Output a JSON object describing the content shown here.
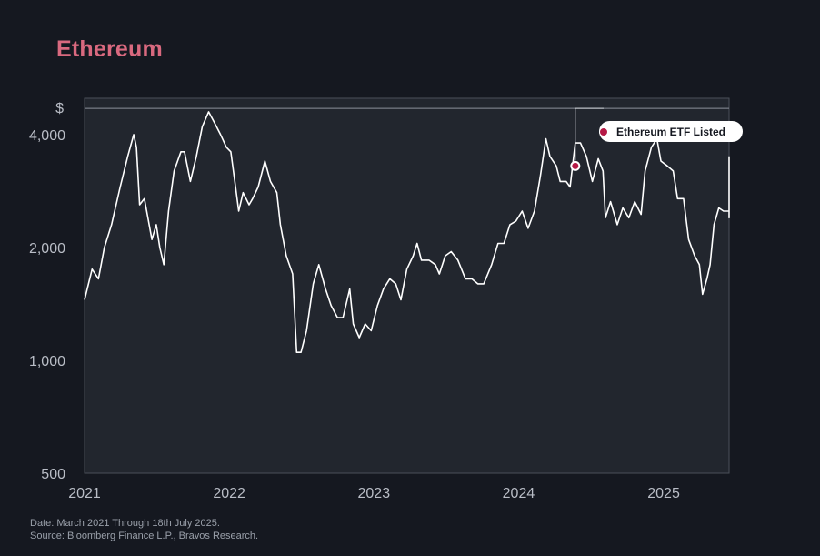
{
  "colors": {
    "accent": "#d9697f",
    "background": "#151820",
    "plot_background": "#22262e",
    "line": "#ffffff",
    "marker": "#b51a46"
  },
  "footer": {
    "date": "Date: March 2021 Through 18th July 2025.",
    "source": "Source: Bloomberg Finance L.P., Bravos Research."
  },
  "chart_data": {
    "type": "line",
    "title": "Ethereum",
    "ylabel": "$",
    "yscale": "log",
    "ylim": [
      500,
      5000
    ],
    "xlim": [
      "2021-01-01",
      "2025-06-15"
    ],
    "yticks": [
      {
        "value": 500,
        "label": "500"
      },
      {
        "value": 1000,
        "label": "1,000"
      },
      {
        "value": 2000,
        "label": "2,000"
      },
      {
        "value": 4000,
        "label": "4,000"
      }
    ],
    "xticks": [
      {
        "value": "2021-01-01",
        "label": "2021"
      },
      {
        "value": "2022-01-01",
        "label": "2022"
      },
      {
        "value": "2023-01-01",
        "label": "2023"
      },
      {
        "value": "2024-01-01",
        "label": "2024"
      },
      {
        "value": "2025-01-01",
        "label": "2025"
      }
    ],
    "grid": false,
    "reference_line": {
      "value": 4700
    },
    "annotations": [
      {
        "text": "Ethereum ETF Listed",
        "x": "2024-05-23",
        "y": 3300
      }
    ],
    "series": [
      {
        "points": [
          [
            "2021-01-01",
            1450
          ],
          [
            "2021-01-20",
            1750
          ],
          [
            "2021-02-05",
            1650
          ],
          [
            "2021-02-20",
            2000
          ],
          [
            "2021-03-10",
            2300
          ],
          [
            "2021-04-01",
            2900
          ],
          [
            "2021-04-20",
            3500
          ],
          [
            "2021-05-05",
            4000
          ],
          [
            "2021-05-12",
            3700
          ],
          [
            "2021-05-20",
            2600
          ],
          [
            "2021-06-01",
            2700
          ],
          [
            "2021-06-20",
            2100
          ],
          [
            "2021-07-01",
            2300
          ],
          [
            "2021-07-10",
            2000
          ],
          [
            "2021-07-20",
            1800
          ],
          [
            "2021-08-01",
            2500
          ],
          [
            "2021-08-15",
            3200
          ],
          [
            "2021-09-01",
            3600
          ],
          [
            "2021-09-10",
            3600
          ],
          [
            "2021-09-25",
            3000
          ],
          [
            "2021-10-10",
            3500
          ],
          [
            "2021-10-25",
            4200
          ],
          [
            "2021-11-10",
            4600
          ],
          [
            "2021-11-25",
            4300
          ],
          [
            "2021-12-10",
            4000
          ],
          [
            "2021-12-25",
            3700
          ],
          [
            "2022-01-05",
            3600
          ],
          [
            "2022-01-15",
            3000
          ],
          [
            "2022-01-25",
            2500
          ],
          [
            "2022-02-05",
            2800
          ],
          [
            "2022-02-20",
            2600
          ],
          [
            "2022-03-01",
            2700
          ],
          [
            "2022-03-15",
            2900
          ],
          [
            "2022-04-01",
            3400
          ],
          [
            "2022-04-15",
            3000
          ],
          [
            "2022-05-01",
            2800
          ],
          [
            "2022-05-10",
            2300
          ],
          [
            "2022-05-25",
            1900
          ],
          [
            "2022-06-10",
            1700
          ],
          [
            "2022-06-20",
            1050
          ],
          [
            "2022-07-01",
            1050
          ],
          [
            "2022-07-15",
            1200
          ],
          [
            "2022-08-01",
            1600
          ],
          [
            "2022-08-15",
            1800
          ],
          [
            "2022-09-01",
            1550
          ],
          [
            "2022-09-15",
            1400
          ],
          [
            "2022-10-01",
            1300
          ],
          [
            "2022-10-15",
            1300
          ],
          [
            "2022-11-01",
            1550
          ],
          [
            "2022-11-10",
            1250
          ],
          [
            "2022-11-25",
            1150
          ],
          [
            "2022-12-10",
            1250
          ],
          [
            "2022-12-25",
            1200
          ],
          [
            "2023-01-10",
            1400
          ],
          [
            "2023-01-25",
            1550
          ],
          [
            "2023-02-10",
            1650
          ],
          [
            "2023-02-25",
            1600
          ],
          [
            "2023-03-10",
            1450
          ],
          [
            "2023-03-25",
            1750
          ],
          [
            "2023-04-10",
            1900
          ],
          [
            "2023-04-20",
            2050
          ],
          [
            "2023-05-01",
            1850
          ],
          [
            "2023-05-20",
            1850
          ],
          [
            "2023-06-05",
            1800
          ],
          [
            "2023-06-15",
            1700
          ],
          [
            "2023-06-30",
            1900
          ],
          [
            "2023-07-15",
            1950
          ],
          [
            "2023-08-01",
            1850
          ],
          [
            "2023-08-20",
            1650
          ],
          [
            "2023-09-05",
            1650
          ],
          [
            "2023-09-20",
            1600
          ],
          [
            "2023-10-05",
            1600
          ],
          [
            "2023-10-25",
            1800
          ],
          [
            "2023-11-10",
            2050
          ],
          [
            "2023-11-25",
            2050
          ],
          [
            "2023-12-10",
            2300
          ],
          [
            "2023-12-25",
            2350
          ],
          [
            "2024-01-10",
            2500
          ],
          [
            "2024-01-25",
            2250
          ],
          [
            "2024-02-10",
            2500
          ],
          [
            "2024-02-25",
            3100
          ],
          [
            "2024-03-10",
            3900
          ],
          [
            "2024-03-20",
            3500
          ],
          [
            "2024-04-05",
            3300
          ],
          [
            "2024-04-15",
            3000
          ],
          [
            "2024-04-30",
            3000
          ],
          [
            "2024-05-10",
            2900
          ],
          [
            "2024-05-23",
            3800
          ],
          [
            "2024-06-05",
            3800
          ],
          [
            "2024-06-20",
            3500
          ],
          [
            "2024-07-05",
            3000
          ],
          [
            "2024-07-20",
            3450
          ],
          [
            "2024-08-01",
            3200
          ],
          [
            "2024-08-07",
            2400
          ],
          [
            "2024-08-20",
            2650
          ],
          [
            "2024-09-06",
            2300
          ],
          [
            "2024-09-20",
            2550
          ],
          [
            "2024-10-05",
            2400
          ],
          [
            "2024-10-20",
            2650
          ],
          [
            "2024-11-05",
            2450
          ],
          [
            "2024-11-15",
            3200
          ],
          [
            "2024-12-01",
            3700
          ],
          [
            "2024-12-15",
            3900
          ],
          [
            "2024-12-25",
            3400
          ],
          [
            "2025-01-10",
            3300
          ],
          [
            "2025-01-25",
            3200
          ],
          [
            "2025-02-05",
            2700
          ],
          [
            "2025-02-20",
            2700
          ],
          [
            "2025-03-05",
            2100
          ],
          [
            "2025-03-20",
            1900
          ],
          [
            "2025-04-01",
            1800
          ],
          [
            "2025-04-09",
            1500
          ],
          [
            "2025-04-20",
            1650
          ],
          [
            "2025-04-28",
            1800
          ],
          [
            "2025-05-08",
            2300
          ],
          [
            "2025-05-20",
            2550
          ],
          [
            "2025-06-01",
            2500
          ],
          [
            "2025-06-15",
            2500
          ],
          [
            "2025-06-25",
            2400
          ],
          [
            "2025-07-01",
            2500
          ],
          [
            "2025-07-08",
            2700
          ],
          [
            "2025-07-14",
            3000
          ],
          [
            "2025-07-18",
            3500
          ]
        ]
      }
    ]
  }
}
